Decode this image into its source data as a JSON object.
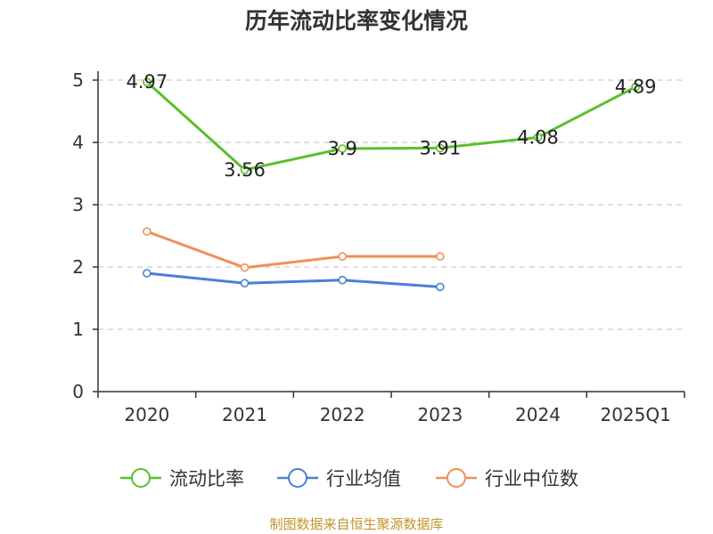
{
  "chart_data": {
    "type": "line",
    "title": "历年流动比率变化情况",
    "categories": [
      "2020",
      "2021",
      "2022",
      "2023",
      "2024",
      "2025Q1"
    ],
    "ylim": [
      0,
      5
    ],
    "yticks": [
      "0",
      "1",
      "2",
      "3",
      "4",
      "5"
    ],
    "grid": true,
    "legend_position": "bottom",
    "series": [
      {
        "name": "流动比率",
        "color": "#5ac02a",
        "values": [
          4.97,
          3.56,
          3.9,
          3.91,
          4.08,
          4.89
        ],
        "labels": [
          "4.97",
          "3.56",
          "3.9",
          "3.91",
          "4.08",
          "4.89"
        ]
      },
      {
        "name": "行业均值",
        "color": "#4a80d8",
        "values": [
          1.9,
          1.74,
          1.79,
          1.68,
          null,
          null
        ]
      },
      {
        "name": "行业中位数",
        "color": "#f28e5a",
        "values": [
          2.57,
          1.99,
          2.17,
          2.17,
          null,
          null
        ]
      }
    ]
  },
  "source": "制图数据来自恒生聚源数据库"
}
